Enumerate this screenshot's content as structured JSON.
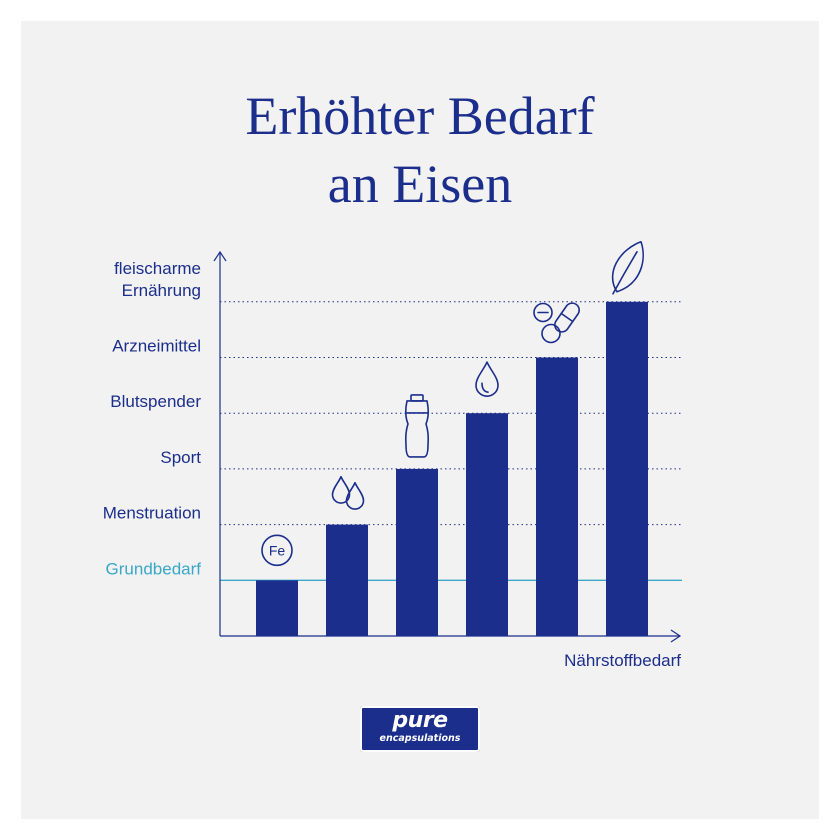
{
  "title": {
    "line1": "Erhöhter Bedarf",
    "line2": "an Eisen"
  },
  "colors": {
    "bar": "#1b2e8c",
    "baseline": "#3aa7c8",
    "background": "#f2f2f2"
  },
  "brand": {
    "name": "pure",
    "sub": "encapsulations"
  },
  "chart_data": {
    "type": "bar",
    "title": "Erhöhter Bedarf an Eisen",
    "xlabel": "Nährstoffbedarf",
    "ylabel": "",
    "y_levels": [
      "Grundbedarf",
      "Menstruation",
      "Sport",
      "Blutspender",
      "Arzneimittel",
      "fleischarme Ernährung"
    ],
    "y_level_lines": [
      [
        "Grundbedarf"
      ],
      [
        "Menstruation"
      ],
      [
        "Sport"
      ],
      [
        "Blutspender"
      ],
      [
        "Arzneimittel"
      ],
      [
        "fleischarme",
        "Ernährung"
      ]
    ],
    "ylim": [
      0,
      6
    ],
    "categories": [
      "Grundbedarf",
      "Menstruation",
      "Sport",
      "Blutspender",
      "Arzneimittel",
      "fleischarme Ernährung"
    ],
    "values": [
      1,
      2,
      3,
      4,
      5,
      6
    ],
    "bar_icons": [
      "fe-badge-icon",
      "drops-icon",
      "bottle-icon",
      "drop-icon",
      "pills-icon",
      "leaf-icon"
    ],
    "icon_text": {
      "fe": "Fe"
    },
    "grid": true
  }
}
